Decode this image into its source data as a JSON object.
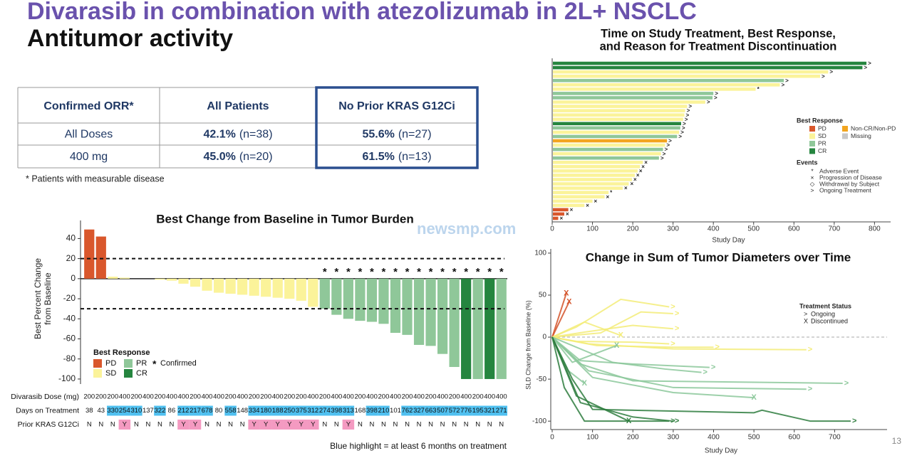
{
  "header": {
    "title": "Divarasib in combination with atezolizumab in 2L+ NSCLC",
    "subtitle": "Antitumor activity",
    "watermark": "newsmp.com",
    "page_number": "13"
  },
  "table": {
    "headers": [
      "Confirmed ORR*",
      "All Patients",
      "No Prior KRAS G12Ci"
    ],
    "rows": [
      {
        "label": "All Doses",
        "cells": [
          {
            "rate": "42.1%",
            "n": "(n=38)"
          },
          {
            "rate": "55.6%",
            "n": "(n=27)"
          }
        ]
      },
      {
        "label": "400 mg",
        "cells": [
          {
            "rate": "45.0%",
            "n": "(n=20)"
          },
          {
            "rate": "61.5%",
            "n": "(n=13)"
          }
        ]
      }
    ],
    "footnote": "* Patients with measurable disease"
  },
  "chart_data": [
    {
      "type": "bar",
      "title": "Best Change from Baseline in Tumor Burden",
      "ylabel": [
        "Best Percent Change",
        "from Baseline"
      ],
      "ylim": [
        -105,
        58
      ],
      "yticks": [
        -100,
        -80,
        -60,
        -40,
        -20,
        0,
        20,
        40
      ],
      "reference_lines": [
        20,
        -30
      ],
      "values": [
        49,
        42,
        2,
        1,
        0,
        0,
        -1,
        -2,
        -5,
        -8,
        -12,
        -14,
        -15,
        -16,
        -17,
        -18,
        -19,
        -20,
        -22,
        -28,
        -30,
        -36,
        -40,
        -42,
        -43,
        -45,
        -54,
        -56,
        -66,
        -67,
        -75,
        -88,
        -100,
        -100,
        -100,
        -100
      ],
      "responses": [
        "PD",
        "PD",
        "SD",
        "SD",
        "SD",
        "SD",
        "SD",
        "SD",
        "SD",
        "SD",
        "SD",
        "SD",
        "SD",
        "SD",
        "SD",
        "SD",
        "SD",
        "SD",
        "SD",
        "SD",
        "PR",
        "PR",
        "PR",
        "PR",
        "PR",
        "PR",
        "PR",
        "PR",
        "PR",
        "PR",
        "PR",
        "PR",
        "CR",
        "PR",
        "CR",
        "PR"
      ],
      "confirmed": [
        false,
        false,
        false,
        false,
        false,
        false,
        false,
        false,
        false,
        false,
        false,
        false,
        false,
        false,
        false,
        false,
        false,
        false,
        false,
        false,
        true,
        true,
        true,
        true,
        true,
        true,
        true,
        true,
        true,
        true,
        true,
        true,
        true,
        true,
        true,
        true
      ],
      "confirmed_symbol": "*",
      "confirmed_label": "Confirmed",
      "legend_title": "Best Response",
      "legend": [
        {
          "name": "PD",
          "color": "#d9572c"
        },
        {
          "name": "SD",
          "color": "#fbf39a"
        },
        {
          "name": "PR",
          "color": "#8fc799"
        },
        {
          "name": "CR",
          "color": "#25853f"
        }
      ],
      "rows": [
        {
          "label": "Divarasib Dose (mg)",
          "values": [
            200,
            200,
            200,
            400,
            200,
            400,
            200,
            400,
            400,
            200,
            400,
            400,
            200,
            400,
            200,
            200,
            400,
            200,
            200,
            400,
            200,
            400,
            400,
            200,
            400,
            200,
            400,
            200,
            400,
            200,
            400,
            200,
            400,
            200,
            400,
            400
          ]
        },
        {
          "label": "Days on Treatment",
          "highlight_color": "#4fc0f0",
          "values": [
            38,
            43,
            330,
            254,
            310,
            137,
            322,
            86,
            212,
            217,
            678,
            80,
            558,
            148,
            334,
            180,
            188,
            250,
            375,
            312,
            274,
            398,
            313,
            168,
            398,
            210,
            101,
            762,
            327,
            663,
            507,
            572,
            776,
            195,
            321,
            271
          ],
          "highlight": [
            false,
            false,
            true,
            true,
            true,
            false,
            true,
            false,
            true,
            true,
            true,
            false,
            true,
            false,
            true,
            true,
            true,
            true,
            true,
            true,
            true,
            true,
            true,
            false,
            true,
            true,
            false,
            true,
            true,
            true,
            true,
            true,
            true,
            true,
            true,
            true
          ]
        },
        {
          "label": "Prior KRAS G12Ci",
          "highlight_color": "#f49ac1",
          "values": [
            "N",
            "N",
            "N",
            "Y",
            "N",
            "N",
            "N",
            "N",
            "Y",
            "Y",
            "N",
            "N",
            "N",
            "N",
            "Y",
            "Y",
            "Y",
            "Y",
            "Y",
            "Y",
            "N",
            "N",
            "Y",
            "N",
            "N",
            "N",
            "N",
            "N",
            "N",
            "N",
            "N",
            "N",
            "N",
            "N",
            "N",
            "N"
          ],
          "highlight": [
            false,
            false,
            false,
            true,
            false,
            false,
            false,
            false,
            true,
            true,
            false,
            false,
            false,
            false,
            true,
            true,
            true,
            true,
            true,
            true,
            false,
            false,
            true,
            false,
            false,
            false,
            false,
            false,
            false,
            false,
            false,
            false,
            false,
            false,
            false,
            false
          ]
        }
      ],
      "footnote": "Blue highlight = at least 6 months on treatment"
    },
    {
      "type": "swimmer",
      "title": [
        "Time on Study Treatment, Best Response,",
        "and Reason for Treatment Discontinuation"
      ],
      "xlabel": "Study Day",
      "xlim": [
        0,
        840
      ],
      "xticks": [
        0,
        100,
        200,
        300,
        400,
        500,
        600,
        700,
        800
      ],
      "values": [
        780,
        770,
        685,
        665,
        575,
        565,
        505,
        400,
        398,
        380,
        335,
        330,
        328,
        325,
        320,
        318,
        315,
        310,
        285,
        280,
        275,
        270,
        265,
        225,
        218,
        212,
        205,
        198,
        190,
        175,
        140,
        130,
        100,
        80,
        40,
        30,
        15
      ],
      "responses": [
        "CR",
        "CR",
        "SD",
        "SD",
        "PR",
        "SD",
        "SD",
        "PR",
        "PR",
        "SD",
        "SD",
        "SD",
        "SD",
        "SD",
        "CR",
        "PR",
        "SD",
        "PR",
        "Non-CR/Non-PD",
        "SD",
        "PR",
        "SD",
        "PR",
        "SD",
        "SD",
        "SD",
        "SD",
        "SD",
        "SD",
        "SD",
        "SD",
        "SD",
        "SD",
        "SD",
        "PD",
        "PD",
        "PD"
      ],
      "events": [
        "Ongoing Treatment",
        "Ongoing Treatment",
        "Ongoing Treatment",
        "Ongoing Treatment",
        "Ongoing Treatment",
        "Ongoing Treatment",
        "Adverse Event",
        "Ongoing Treatment",
        "Ongoing Treatment",
        "Ongoing Treatment",
        "Ongoing Treatment",
        "Ongoing Treatment",
        "Ongoing Treatment",
        "Ongoing Treatment",
        "Ongoing Treatment",
        "Ongoing Treatment",
        "Ongoing Treatment",
        "Ongoing Treatment",
        "Ongoing Treatment",
        "Ongoing Treatment",
        "Ongoing Treatment",
        "Ongoing Treatment",
        "Ongoing Treatment",
        "Progression of Disease",
        "Progression of Disease",
        "Progression of Disease",
        "Progression of Disease",
        "Progression of Disease",
        "Progression of Disease",
        "Progression of Disease",
        "Adverse Event",
        "Progression of Disease",
        "Progression of Disease",
        "Progression of Disease",
        "Progression of Disease",
        "Progression of Disease",
        "Progression of Disease"
      ],
      "legend_title": "Best Response",
      "legend": [
        {
          "name": "PD",
          "color": "#d9572c"
        },
        {
          "name": "Non-CR/Non-PD",
          "color": "#f2a51f"
        },
        {
          "name": "SD",
          "color": "#fbf39a"
        },
        {
          "name": "Missing",
          "color": "#c8c8c8"
        },
        {
          "name": "PR",
          "color": "#8fc799"
        },
        {
          "name": "CR",
          "color": "#25853f"
        }
      ],
      "events_title": "Events",
      "events_legend": [
        {
          "symbol": "*",
          "name": "Adverse Event"
        },
        {
          "symbol": "×",
          "name": "Progression of Disease"
        },
        {
          "symbol": "◇",
          "name": "Withdrawal by Subject"
        },
        {
          "symbol": ">",
          "name": "Ongoing Treatment"
        }
      ]
    },
    {
      "type": "line",
      "title": "Change in Sum of Tumor Diameters over Time",
      "xlabel": "Study Day",
      "ylabel": "SLD Change from Baseline (%)",
      "xlim": [
        0,
        830
      ],
      "xticks": [
        0,
        100,
        200,
        300,
        400,
        500,
        600,
        700
      ],
      "ylim": [
        -110,
        105
      ],
      "yticks": [
        -100,
        -50,
        0,
        50,
        100
      ],
      "reference_line": 0,
      "legend_title": "Treatment Status",
      "status_legend": [
        {
          "symbol": ">",
          "label": "Ongoing"
        },
        {
          "symbol": "X",
          "label": "Discontinued"
        }
      ],
      "series": [
        {
          "color": "#d4532a",
          "status": "Discontinued",
          "x": [
            0,
            35
          ],
          "y": [
            0,
            52
          ]
        },
        {
          "color": "#d4532a",
          "status": "Discontinued",
          "x": [
            0,
            42
          ],
          "y": [
            0,
            42
          ]
        },
        {
          "color": "#f3ec78",
          "status": "Ongoing",
          "x": [
            0,
            60,
            170,
            290
          ],
          "y": [
            0,
            12,
            45,
            36
          ]
        },
        {
          "color": "#f3ec78",
          "status": "Ongoing",
          "x": [
            0,
            80,
            200,
            300
          ],
          "y": [
            0,
            6,
            14,
            10
          ]
        },
        {
          "color": "#f3ec78",
          "status": "Ongoing",
          "x": [
            0,
            90,
            300,
            630
          ],
          "y": [
            0,
            -8,
            -14,
            -15
          ]
        },
        {
          "color": "#f3ec78",
          "status": "Ongoing",
          "x": [
            0,
            110,
            300,
            400
          ],
          "y": [
            0,
            -10,
            -12,
            -12
          ]
        },
        {
          "color": "#f3ec78",
          "status": "Discontinued",
          "x": [
            0,
            80,
            170
          ],
          "y": [
            0,
            18,
            2
          ]
        },
        {
          "color": "#f3ec78",
          "status": "Ongoing",
          "x": [
            0,
            60,
            200,
            290
          ],
          "y": [
            0,
            -5,
            -6,
            -8
          ]
        },
        {
          "color": "#f3ec78",
          "status": "Ongoing",
          "x": [
            0,
            120,
            220,
            300
          ],
          "y": [
            0,
            5,
            30,
            28
          ]
        },
        {
          "color": "#8cc89b",
          "status": "Ongoing",
          "x": [
            0,
            90,
            300,
            630
          ],
          "y": [
            0,
            -40,
            -60,
            -62
          ]
        },
        {
          "color": "#8cc89b",
          "status": "Ongoing",
          "x": [
            0,
            70,
            200,
            720
          ],
          "y": [
            0,
            -32,
            -52,
            -55
          ]
        },
        {
          "color": "#8cc89b",
          "status": "Discontinued",
          "x": [
            0,
            100,
            300,
            500
          ],
          "y": [
            0,
            -48,
            -66,
            -72
          ]
        },
        {
          "color": "#8cc89b",
          "status": "Ongoing",
          "x": [
            0,
            70,
            200,
            390
          ],
          "y": [
            0,
            -28,
            -32,
            -36
          ]
        },
        {
          "color": "#8cc89b",
          "status": "Discontinued",
          "x": [
            0,
            50,
            160
          ],
          "y": [
            0,
            -30,
            -10
          ]
        },
        {
          "color": "#8cc89b",
          "status": "Discontinued",
          "x": [
            0,
            40,
            80
          ],
          "y": [
            0,
            -40,
            -55
          ]
        },
        {
          "color": "#8cc89b",
          "status": "Ongoing",
          "x": [
            0,
            150,
            280,
            370
          ],
          "y": [
            0,
            -30,
            -38,
            -42
          ]
        },
        {
          "color": "#2e7d3e",
          "status": "Ongoing",
          "x": [
            0,
            50,
            100,
            500,
            520,
            640,
            740
          ],
          "y": [
            0,
            -50,
            -86,
            -90,
            -87,
            -100,
            -100
          ]
        },
        {
          "color": "#2e7d3e",
          "status": "Ongoing",
          "x": [
            0,
            70,
            200,
            300
          ],
          "y": [
            0,
            -78,
            -95,
            -100
          ]
        },
        {
          "color": "#2e7d3e",
          "status": "Discontinued",
          "x": [
            0,
            60,
            190
          ],
          "y": [
            0,
            -70,
            -100
          ]
        },
        {
          "color": "#2e7d3e",
          "status": "Ongoing",
          "x": [
            0,
            30,
            80,
            290
          ],
          "y": [
            0,
            -60,
            -100,
            -100
          ]
        }
      ]
    }
  ]
}
